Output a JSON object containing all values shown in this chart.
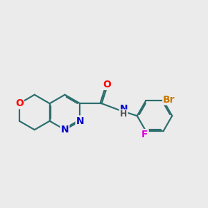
{
  "background_color": "#ebebeb",
  "bond_color": "#2d6e6e",
  "bond_width": 1.6,
  "atom_colors": {
    "O": "#ff0000",
    "N": "#0000cc",
    "F": "#dd00dd",
    "Br": "#cc7700",
    "H": "#555555"
  },
  "font_size_atoms": 10,
  "font_size_small": 9
}
